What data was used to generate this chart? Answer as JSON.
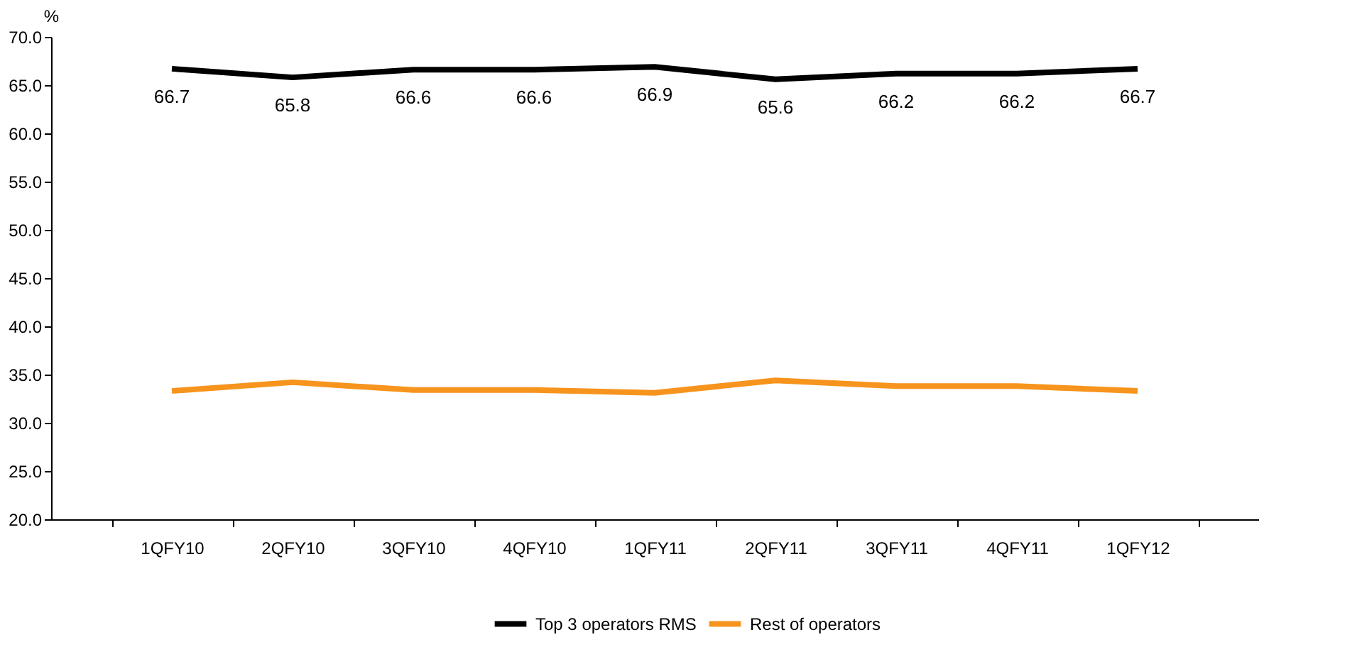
{
  "chart_data": {
    "type": "line",
    "ylabel": "%",
    "categories": [
      "1QFY10",
      "2QFY10",
      "3QFY10",
      "4QFY10",
      "1QFY11",
      "2QFY11",
      "3QFY11",
      "4QFY11",
      "1QFY12"
    ],
    "series": [
      {
        "name": "Top 3 operators RMS",
        "color": "#000000",
        "values": [
          66.7,
          65.8,
          66.6,
          66.6,
          66.9,
          65.6,
          66.2,
          66.2,
          66.7
        ],
        "value_labels": [
          "66.7",
          "65.8",
          "66.6",
          "66.6",
          "66.9",
          "65.6",
          "66.2",
          "66.2",
          "66.7"
        ]
      },
      {
        "name": "Rest of operators",
        "color": "#f7941d",
        "values": [
          33.3,
          34.2,
          33.4,
          33.4,
          33.1,
          34.4,
          33.8,
          33.8,
          33.3
        ]
      }
    ],
    "ylim": [
      20,
      70
    ],
    "yticks": [
      {
        "value": 20,
        "label": "20.0"
      },
      {
        "value": 25,
        "label": "25.0"
      },
      {
        "value": 30,
        "label": "30.0"
      },
      {
        "value": 35,
        "label": "35.0"
      },
      {
        "value": 40,
        "label": "40.0"
      },
      {
        "value": 45,
        "label": "45.0"
      },
      {
        "value": 50,
        "label": "50.0"
      },
      {
        "value": 55,
        "label": "55.0"
      },
      {
        "value": 60,
        "label": "60.0"
      },
      {
        "value": 65,
        "label": "65.0"
      },
      {
        "value": 70,
        "label": "70.0"
      }
    ],
    "grid": false,
    "legend": "bottom",
    "marker": "none",
    "line_style": "solid"
  }
}
